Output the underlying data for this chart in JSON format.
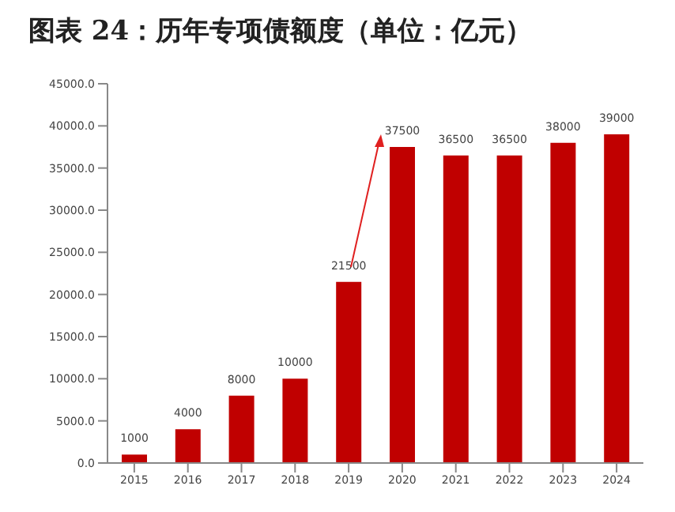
{
  "chart_data": {
    "type": "bar",
    "title": "图表 24：历年专项债额度（单位：亿元）",
    "categories": [
      "2015",
      "2016",
      "2017",
      "2018",
      "2019",
      "2020",
      "2021",
      "2022",
      "2023",
      "2024"
    ],
    "values": [
      1000,
      4000,
      8000,
      10000,
      21500,
      37500,
      36500,
      36500,
      38000,
      39000
    ],
    "color": "#c00000",
    "ylim": [
      0,
      45000
    ],
    "yticks": [
      {
        "value": 0,
        "label": "0.0"
      },
      {
        "value": 5000,
        "label": "5000.0"
      },
      {
        "value": 10000,
        "label": "10000.0"
      },
      {
        "value": 15000,
        "label": "15000.0"
      },
      {
        "value": 20000,
        "label": "20000.0"
      },
      {
        "value": 25000,
        "label": "25000.0"
      },
      {
        "value": 30000,
        "label": "30000.0"
      },
      {
        "value": 35000,
        "label": "35000.0"
      },
      {
        "value": 40000,
        "label": "40000.0"
      },
      {
        "value": 45000,
        "label": "45000.0"
      }
    ],
    "data_labels": true,
    "grid": false,
    "legend": false
  }
}
